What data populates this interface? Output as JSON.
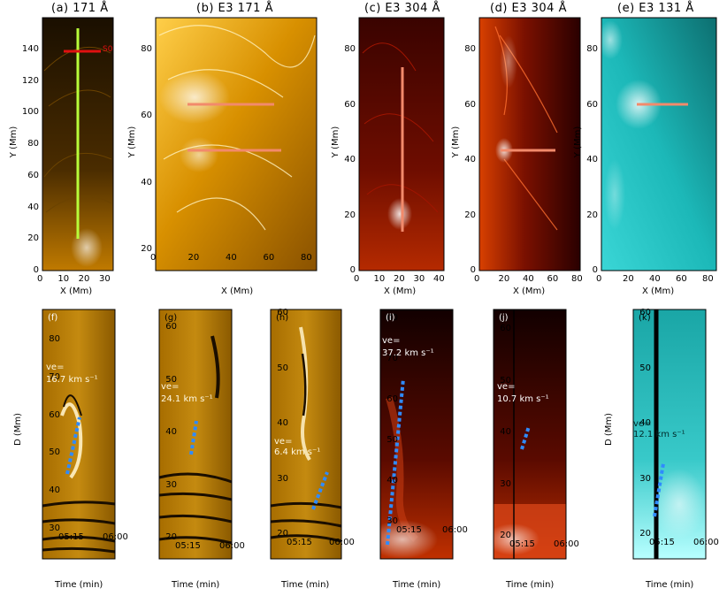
{
  "panels_top": [
    {
      "id": "a",
      "title": "(a) 171 Å",
      "xlabel": "X (Mm)",
      "ylabel": "Y (Mm)",
      "xticks": [
        "0",
        "10",
        "20",
        "30"
      ],
      "yticks": [
        "0",
        "20",
        "40",
        "60",
        "80",
        "100",
        "120",
        "140"
      ],
      "marker_label": "S0",
      "theme": "171"
    },
    {
      "id": "b",
      "title": "(b) E3 171 Å",
      "xlabel": "X (Mm)",
      "ylabel": "Y (Mm)",
      "xticks": [
        "0",
        "20",
        "40",
        "60",
        "80"
      ],
      "yticks": [
        "20",
        "40",
        "60",
        "80"
      ],
      "theme": "171b"
    },
    {
      "id": "c",
      "title": "(c) E3 304 Å",
      "xlabel": "X (Mm)",
      "ylabel": "Y (Mm)",
      "xticks": [
        "0",
        "10",
        "20",
        "30",
        "40"
      ],
      "yticks": [
        "0",
        "20",
        "40",
        "60",
        "80"
      ],
      "theme": "304"
    },
    {
      "id": "d",
      "title": "(d) E3 304 Å",
      "xlabel": "X (Mm)",
      "ylabel": "Y (Mm)",
      "xticks": [
        "0",
        "20",
        "40",
        "60",
        "80"
      ],
      "yticks": [
        "0",
        "20",
        "40",
        "60",
        "80"
      ],
      "theme": "304b"
    },
    {
      "id": "e",
      "title": "(e) E3 131 Å",
      "xlabel": "X (Mm)",
      "ylabel": "Y (Mm)",
      "xticks": [
        "0",
        "20",
        "40",
        "60",
        "80"
      ],
      "yticks": [
        "0",
        "20",
        "40",
        "60",
        "80"
      ],
      "theme": "131"
    }
  ],
  "panels_bottom": [
    {
      "id": "f",
      "tag": "(f)",
      "ve_line1": "ve=",
      "ve_line2": "16.7 km s⁻¹",
      "xlabel": "Time (min)",
      "ylabel": "D (Mm)",
      "xticks": [
        "05:15",
        "06:00"
      ],
      "yticks": [
        "30",
        "40",
        "50",
        "60",
        "70",
        "80"
      ],
      "theme": "171"
    },
    {
      "id": "g",
      "tag": "(g)",
      "ve_line1": "ve=",
      "ve_line2": "24.1 km s⁻¹",
      "xlabel": "Time (min)",
      "ylabel": "",
      "xticks": [
        "05:15",
        "06:00"
      ],
      "yticks": [
        "20",
        "30",
        "40",
        "50",
        "60"
      ],
      "theme": "171"
    },
    {
      "id": "h",
      "tag": "(h)",
      "ve_line1": "ve=",
      "ve_line2": "6.4 km s⁻¹",
      "xlabel": "Time (min)",
      "ylabel": "",
      "xticks": [
        "05:15",
        "06:00"
      ],
      "yticks": [
        "20",
        "30",
        "40",
        "50",
        "60"
      ],
      "theme": "171"
    },
    {
      "id": "i",
      "tag": "(i)",
      "ve_line1": "ve=",
      "ve_line2": "37.2 km s⁻¹",
      "xlabel": "Time (min)",
      "ylabel": "",
      "xticks": [
        "05:15",
        "06:00"
      ],
      "yticks": [
        "30",
        "40",
        "50",
        "60",
        "70",
        "80"
      ],
      "theme": "304"
    },
    {
      "id": "j",
      "tag": "(j)",
      "ve_line1": "ve=",
      "ve_line2": "10.7 km s⁻¹",
      "xlabel": "Time (min)",
      "ylabel": "",
      "xticks": [
        "05:15",
        "06:00"
      ],
      "yticks": [
        "20",
        "30",
        "40",
        "50",
        "60"
      ],
      "theme": "304"
    },
    {
      "id": "k",
      "tag": "(k)",
      "ve_line1": "ve=",
      "ve_line2": "12.1 km s⁻¹",
      "xlabel": "Time (min)",
      "ylabel": "D (Mm)",
      "xticks": [
        "05:15",
        "06:00"
      ],
      "yticks": [
        "20",
        "30",
        "40",
        "50",
        "60"
      ],
      "theme": "131"
    }
  ],
  "colors": {
    "c171_dark": "#2b1a00",
    "c171_mid": "#b77a00",
    "c171_light": "#ffe9a6",
    "c304_dark": "#2a0000",
    "c304_mid": "#8a1600",
    "c304_light": "#ffd6b0",
    "c131_dark": "#002828",
    "c131_mid": "#13a4a4",
    "c131_light": "#d8ffff",
    "slit_green": "#b8ff3a",
    "slit_red": "#e01010",
    "slit_salmon": "#f28a6b",
    "fit_blue": "#2f8bff"
  }
}
